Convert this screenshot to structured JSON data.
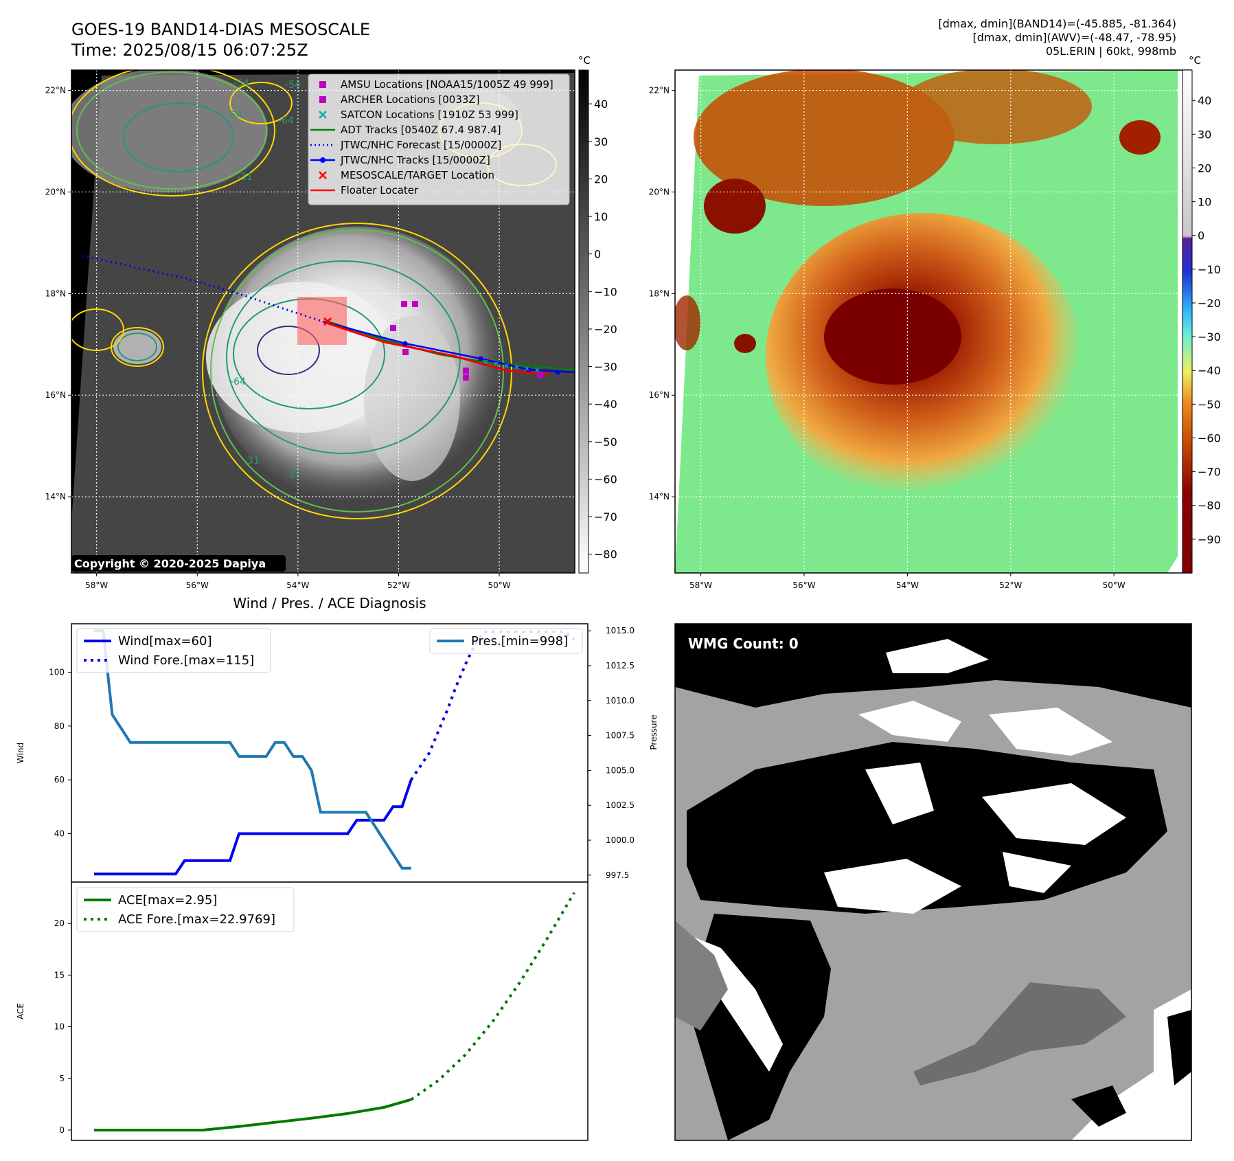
{
  "header": {
    "title": "GOES-19 BAND14-DIAS MESOSCALE",
    "time": "Time: 2025/08/15 06:07:25Z",
    "dmax_band14": "[dmax, dmin](BAND14)=(-45.885, -81.364)",
    "dmax_awv": "[dmax, dmin](AWV)=(-48.47, -78.95)",
    "storm": "05L.ERIN | 60kt, 998mb"
  },
  "copyright": "Copyright © 2020-2025 Dapiya",
  "map_axes": {
    "lat_labels": [
      "22°N",
      "20°N",
      "18°N",
      "16°N",
      "14°N"
    ],
    "lat_values": [
      22,
      20,
      18,
      16,
      14
    ],
    "lon_labels": [
      "58°W",
      "56°W",
      "54°W",
      "52°W",
      "50°W"
    ],
    "lon_values": [
      -58,
      -56,
      -54,
      -52,
      -50
    ],
    "lat_range": [
      12.5,
      22.4
    ],
    "lon_range": [
      -58.5,
      -48.5
    ]
  },
  "colorbar_left": {
    "unit": "°C",
    "ticks": [
      40,
      30,
      20,
      10,
      0,
      -10,
      -20,
      -30,
      -40,
      -50,
      -60,
      -70,
      -80
    ],
    "labels": [
      "40",
      "30",
      "20",
      "10",
      "0",
      "−10",
      "−20",
      "−30",
      "−40",
      "−50",
      "−60",
      "−70",
      "−80"
    ],
    "range": [
      -85,
      49
    ]
  },
  "colorbar_right": {
    "unit": "°C",
    "ticks": [
      40,
      30,
      20,
      10,
      0,
      -10,
      -20,
      -30,
      -40,
      -50,
      -60,
      -70,
      -80,
      -90
    ],
    "labels": [
      "40",
      "30",
      "20",
      "10",
      "0",
      "−10",
      "−20",
      "−30",
      "−40",
      "−50",
      "−60",
      "−70",
      "−80",
      "−90"
    ],
    "range": [
      -100,
      49
    ]
  },
  "contour_labels": [
    "-54",
    "-54",
    "-64",
    "-64",
    "-31",
    "-64",
    "-31",
    "-31"
  ],
  "map_legend": {
    "items": [
      {
        "label": "AMSU Locations [NOAA15/1005Z 49 999]",
        "marker": "square",
        "color": "#c000c0"
      },
      {
        "label": "ARCHER Locations [0033Z]",
        "marker": "square",
        "color": "#c000c0"
      },
      {
        "label": "SATCON Locations [1910Z 53 999]",
        "marker": "x",
        "color": "#00b0b0"
      },
      {
        "label": "ADT Tracks [0540Z 67.4 987.4]",
        "marker": "line",
        "color": "#008000"
      },
      {
        "label": "JTWC/NHC Forecast [15/0000Z]",
        "marker": "dotted",
        "color": "#0000ff"
      },
      {
        "label": "JTWC/NHC Tracks [15/0000Z]",
        "marker": "line-dot",
        "color": "#0000ff"
      },
      {
        "label": "MESOSCALE/TARGET Location",
        "marker": "x",
        "color": "#ff0000"
      },
      {
        "label": "Floater Locater",
        "marker": "line",
        "color": "#ff0000"
      }
    ]
  },
  "diag_title": "Wind / Pres. / ACE Diagnosis",
  "wmg_label": "WMG Count: 0",
  "chart_data": [
    {
      "type": "line",
      "title": "Wind / Pres. / ACE Diagnosis",
      "ylabel": "Wind",
      "ylabel_right": "Pressure",
      "ylim": [
        22,
        118
      ],
      "ylim_right": [
        997.0,
        1015.5
      ],
      "yticks": [
        40,
        60,
        80,
        100
      ],
      "yticks_right": [
        997.5,
        1000.0,
        1002.5,
        1005.0,
        1007.5,
        1010.0,
        1012.5,
        1015.0
      ],
      "yticks_right_labels": [
        "997.5",
        "1000.0",
        "1002.5",
        "1005.0",
        "1007.5",
        "1010.0",
        "1012.5",
        "1015.0"
      ],
      "x": [
        0,
        1,
        2,
        3,
        4,
        5,
        6,
        7,
        8,
        9,
        10,
        11,
        12,
        13,
        14,
        15,
        16,
        17,
        18,
        19,
        20,
        21,
        22,
        23,
        24,
        25,
        26,
        27,
        28,
        29,
        30,
        31,
        32,
        33,
        34,
        35,
        36,
        37,
        38,
        39,
        40,
        41,
        42,
        43,
        44,
        45,
        46,
        47,
        48,
        49,
        50,
        51,
        52,
        53
      ],
      "xlim": [
        -2.5,
        54.5
      ],
      "series": [
        {
          "name": "Wind[max=60]",
          "axis": "left",
          "style": "solid",
          "color": "#0000ee",
          "x": [
            0,
            1,
            2,
            3,
            4,
            5,
            6,
            7,
            8,
            9,
            10,
            11,
            12,
            13,
            14,
            15,
            16,
            17,
            18,
            19,
            20,
            21,
            22,
            23,
            24,
            25,
            26,
            27,
            28,
            29,
            30,
            31,
            32,
            33,
            34,
            35
          ],
          "values": [
            25,
            25,
            25,
            25,
            25,
            25,
            25,
            25,
            25,
            25,
            30,
            30,
            30,
            30,
            30,
            30,
            40,
            40,
            40,
            40,
            40,
            40,
            40,
            40,
            40,
            40,
            40,
            40,
            40,
            45,
            45,
            45,
            45,
            50,
            50,
            60
          ]
        },
        {
          "name": "Wind Fore.[max=115]",
          "axis": "left",
          "style": "dotted",
          "color": "#0000ee",
          "x": [
            35,
            36,
            37,
            38,
            39,
            40,
            41,
            42,
            43,
            44,
            45,
            46,
            47,
            48,
            49,
            50,
            51,
            52,
            53
          ],
          "values": [
            60,
            65,
            70,
            78,
            86,
            95,
            103,
            110,
            115,
            115,
            115,
            115,
            115,
            115,
            115,
            115,
            115,
            115,
            112
          ]
        },
        {
          "name": "Pres.[min=998]",
          "axis": "right",
          "style": "solid",
          "color": "#1f77b4",
          "x": [
            0,
            1,
            2,
            3,
            4,
            5,
            6,
            7,
            8,
            9,
            10,
            11,
            12,
            13,
            14,
            15,
            16,
            17,
            18,
            19,
            20,
            21,
            22,
            23,
            24,
            25,
            26,
            27,
            28,
            29,
            30,
            31,
            32,
            33,
            34,
            35
          ],
          "values": [
            1015,
            1015,
            1009,
            1008,
            1007,
            1007,
            1007,
            1007,
            1007,
            1007,
            1007,
            1007,
            1007,
            1007,
            1007,
            1007,
            1006,
            1006,
            1006,
            1006,
            1007,
            1007,
            1006,
            1006,
            1005,
            1002,
            1002,
            1002,
            1002,
            1002,
            1002,
            1001,
            1000,
            999,
            998,
            998
          ]
        }
      ]
    },
    {
      "type": "line",
      "ylabel": "ACE",
      "ylim": [
        -1.0,
        24.0
      ],
      "yticks": [
        0,
        5,
        10,
        15,
        20
      ],
      "x": [
        0,
        1,
        2,
        3,
        4,
        5,
        6,
        7,
        8,
        9,
        10,
        11,
        12,
        13,
        14,
        15,
        16,
        17,
        18,
        19,
        20,
        21,
        22,
        23,
        24,
        25,
        26,
        27,
        28,
        29,
        30,
        31,
        32,
        33,
        34,
        35,
        36,
        37,
        38,
        39,
        40,
        41,
        42,
        43,
        44,
        45,
        46,
        47,
        48,
        49,
        50,
        51,
        52,
        53
      ],
      "xlim": [
        -2.5,
        54.5
      ],
      "series": [
        {
          "name": "ACE[max=2.95]",
          "style": "solid",
          "color": "#007a00",
          "x": [
            0,
            12,
            16,
            20,
            24,
            28,
            32,
            35
          ],
          "values": [
            0,
            0,
            0.35,
            0.75,
            1.15,
            1.6,
            2.2,
            2.95
          ]
        },
        {
          "name": "ACE Fore.[max=22.9769]",
          "style": "dotted",
          "color": "#007a00",
          "x": [
            35,
            38,
            41,
            44,
            47,
            50,
            53
          ],
          "values": [
            2.95,
            4.8,
            7.3,
            10.5,
            14.3,
            18.5,
            22.9769
          ]
        }
      ]
    }
  ]
}
